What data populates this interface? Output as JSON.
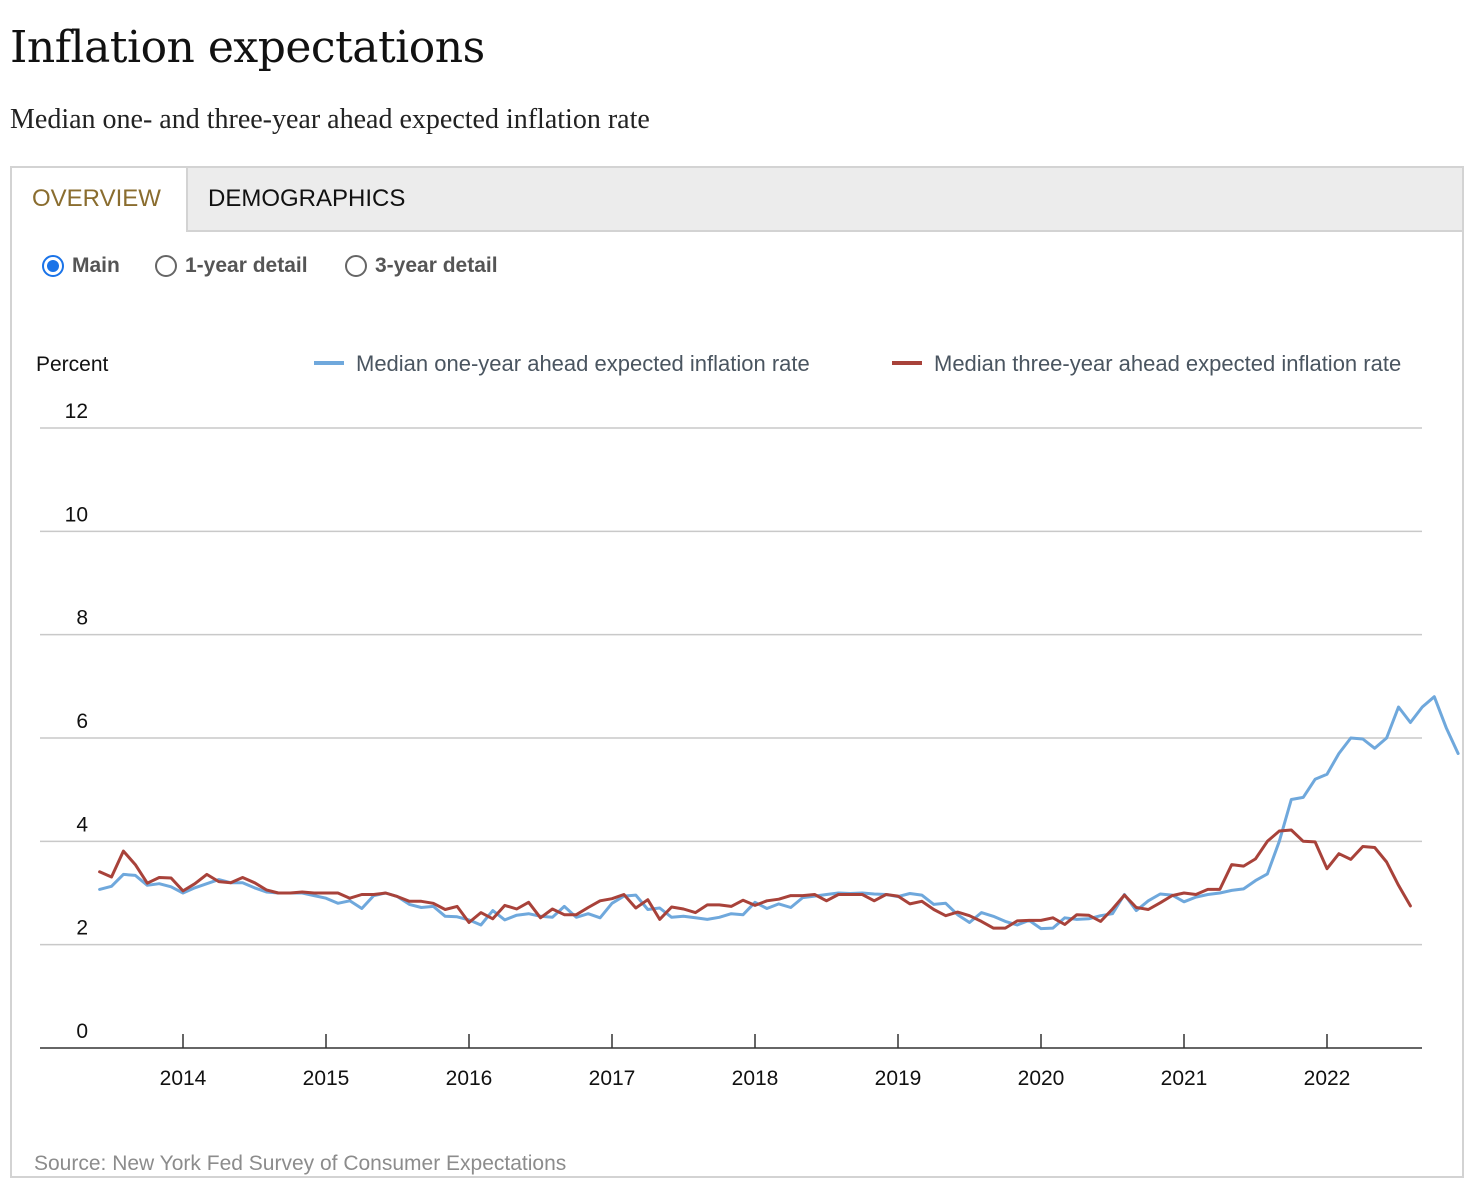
{
  "header": {
    "title": "Inflation expectations",
    "subtitle": "Median one- and three-year ahead expected inflation rate"
  },
  "tabs": [
    {
      "label": "OVERVIEW",
      "active": true
    },
    {
      "label": "DEMOGRAPHICS",
      "active": false
    }
  ],
  "radios": [
    {
      "label": "Main",
      "checked": true
    },
    {
      "label": "1-year detail",
      "checked": false
    },
    {
      "label": "3-year detail",
      "checked": false
    }
  ],
  "colors": {
    "one_year": "#6fa8dc",
    "three_year": "#a8423a",
    "active_tab": "#8a6d2f",
    "radio_accent": "#1a73e8"
  },
  "source": "Source: New York Fed Survey of Consumer Expectations",
  "chart_data": {
    "type": "line",
    "ylabel": "Percent",
    "ylim": [
      0,
      12
    ],
    "yticks": [
      "0",
      "2",
      "4",
      "6",
      "8",
      "10",
      "12"
    ],
    "xticks": [
      "2014",
      "2015",
      "2016",
      "2017",
      "2018",
      "2019",
      "2020",
      "2021",
      "2022"
    ],
    "x_start": "2013-06",
    "x_end": "2022-08",
    "grid": true,
    "legend_position": "top-right",
    "series": [
      {
        "name": "Median one-year ahead expected inflation rate",
        "color": "#6fa8dc",
        "values": [
          3.07,
          3.13,
          3.36,
          3.34,
          3.15,
          3.18,
          3.12,
          3.0,
          3.1,
          3.18,
          3.26,
          3.2,
          3.2,
          3.1,
          3.02,
          3.0,
          3.0,
          3.0,
          2.95,
          2.9,
          2.8,
          2.85,
          2.7,
          2.95,
          3.0,
          2.93,
          2.78,
          2.72,
          2.74,
          2.55,
          2.54,
          2.48,
          2.38,
          2.66,
          2.48,
          2.57,
          2.6,
          2.55,
          2.53,
          2.74,
          2.53,
          2.6,
          2.52,
          2.8,
          2.94,
          2.96,
          2.68,
          2.71,
          2.53,
          2.55,
          2.52,
          2.49,
          2.53,
          2.6,
          2.58,
          2.82,
          2.7,
          2.79,
          2.72,
          2.91,
          2.94,
          2.97,
          3.0,
          2.99,
          3.0,
          2.98,
          2.97,
          2.93,
          2.99,
          2.96,
          2.78,
          2.8,
          2.58,
          2.43,
          2.62,
          2.55,
          2.45,
          2.38,
          2.47,
          2.31,
          2.32,
          2.52,
          2.49,
          2.5,
          2.56,
          2.6,
          2.97,
          2.66,
          2.85,
          2.98,
          2.96,
          2.83,
          2.92,
          2.97,
          3.0,
          3.05,
          3.08,
          3.24,
          3.37,
          4.0,
          4.81,
          4.85,
          5.2,
          5.3,
          5.7,
          6.0,
          5.98,
          5.8,
          6.0,
          6.6,
          6.3,
          6.6,
          6.8,
          6.2,
          5.7
        ]
      },
      {
        "name": "Median three-year ahead expected inflation rate",
        "color": "#a8423a",
        "values": [
          3.41,
          3.31,
          3.81,
          3.55,
          3.19,
          3.3,
          3.29,
          3.04,
          3.18,
          3.36,
          3.22,
          3.2,
          3.3,
          3.2,
          3.06,
          3.0,
          3.0,
          3.02,
          3.0,
          3.0,
          3.0,
          2.9,
          2.97,
          2.97,
          3.0,
          2.93,
          2.84,
          2.84,
          2.8,
          2.68,
          2.74,
          2.43,
          2.62,
          2.5,
          2.76,
          2.69,
          2.82,
          2.52,
          2.69,
          2.58,
          2.58,
          2.72,
          2.85,
          2.89,
          2.97,
          2.71,
          2.87,
          2.49,
          2.73,
          2.69,
          2.62,
          2.77,
          2.77,
          2.74,
          2.86,
          2.76,
          2.85,
          2.88,
          2.95,
          2.95,
          2.97,
          2.85,
          2.97,
          2.97,
          2.97,
          2.85,
          2.97,
          2.94,
          2.79,
          2.84,
          2.68,
          2.56,
          2.63,
          2.56,
          2.45,
          2.32,
          2.32,
          2.46,
          2.47,
          2.47,
          2.52,
          2.39,
          2.58,
          2.57,
          2.45,
          2.69,
          2.96,
          2.72,
          2.68,
          2.81,
          2.95,
          3.0,
          2.97,
          3.07,
          3.07,
          3.55,
          3.52,
          3.66,
          4.0,
          4.2,
          4.22,
          4.0,
          3.99,
          3.47,
          3.76,
          3.65,
          3.9,
          3.88,
          3.6,
          3.15,
          2.75
        ]
      }
    ]
  }
}
